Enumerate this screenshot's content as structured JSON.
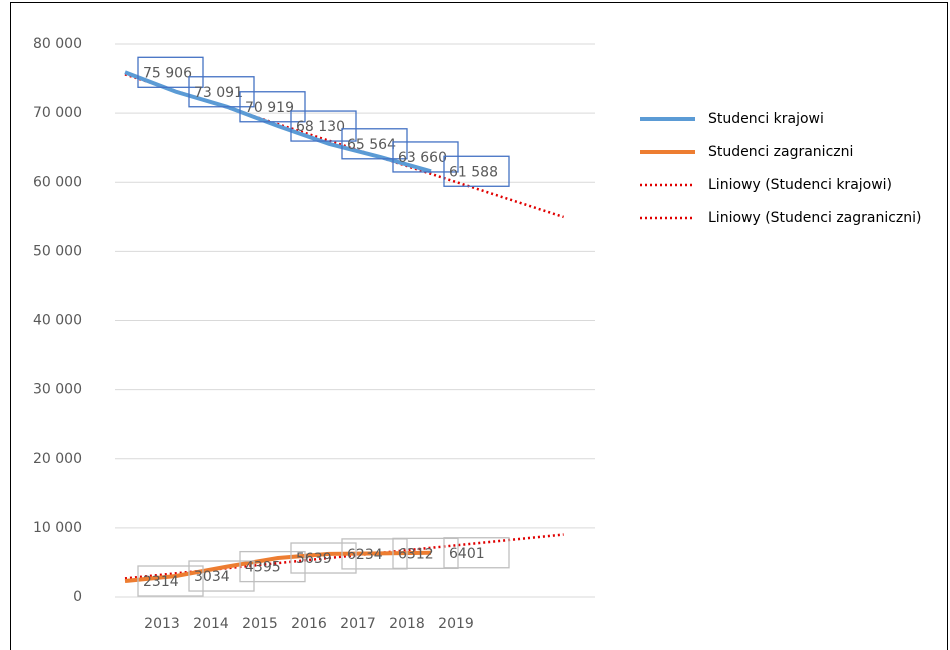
{
  "chart_data": {
    "type": "line",
    "categories": [
      "2013",
      "2014",
      "2015",
      "2016",
      "2017",
      "2018",
      "2019"
    ],
    "series": [
      {
        "name": "Studenci krajowi",
        "color": "#5b9bd5",
        "values": [
          75906,
          73091,
          70919,
          68130,
          65564,
          63660,
          61588
        ],
        "value_labels": [
          "75 906",
          "73 091",
          "70 919",
          "68 130",
          "65 564",
          "63 660",
          "61 588"
        ],
        "label_border": "#4472c4"
      },
      {
        "name": "Studenci zagraniczni",
        "color": "#ed7d31",
        "values": [
          2314,
          3034,
          4395,
          5639,
          6234,
          6312,
          6401
        ],
        "label_border": "#bfbfbf"
      }
    ],
    "trendlines": [
      {
        "name": "Liniowy (Studenci krajowi)",
        "color": "#e00000",
        "series": 0
      },
      {
        "name": "Liniowy (Studenci zagraniczni)",
        "color": "#e00000",
        "series": 1
      }
    ],
    "ylim": [
      0,
      80000
    ],
    "yticks": [
      0,
      {
        "value": 10000,
        "label": "10 000"
      },
      {
        "value": 20000,
        "label": "20 000"
      },
      {
        "value": 30000,
        "label": "30 000"
      },
      {
        "value": 40000,
        "label": "40 000"
      },
      {
        "value": 50000,
        "label": "50 000"
      },
      {
        "value": 60000,
        "label": "60 000"
      },
      {
        "value": 70000,
        "label": "70 000"
      },
      {
        "value": 80000,
        "label": "80 000"
      }
    ],
    "grid": true,
    "legend": "right"
  }
}
